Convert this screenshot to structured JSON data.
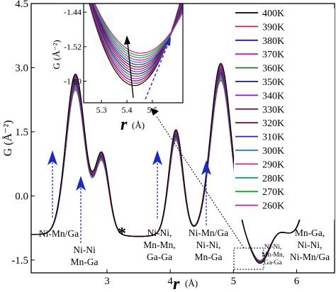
{
  "chart_data": {
    "type": "line",
    "main": {
      "xlabel": "r",
      "xunit": "(Å)",
      "ylabel": "G (Å⁻²)",
      "xlim": [
        1.8,
        6.6
      ],
      "ylim": [
        -1.8,
        4.5
      ],
      "xticks": [
        3,
        4,
        5,
        6
      ],
      "yticks": [
        -1.5,
        0.0,
        1.5,
        3.0,
        4.5
      ],
      "ytick_labels": [
        "-1.5",
        "0.0",
        "1.5",
        "3.0",
        "4.5"
      ]
    },
    "inset": {
      "xlabel": "r",
      "xunit": "(Å)",
      "ylabel": "G (Å⁻²)",
      "xlim": [
        5.23,
        5.62
      ],
      "ylim": [
        -1.65,
        -1.42
      ],
      "xticks": [
        5.3,
        5.4,
        5.5
      ],
      "xtick_labels": [
        "5.3",
        "5.4",
        "5.5"
      ],
      "yticks": [
        -1.6,
        -1.52,
        -1.44
      ],
      "ytick_labels": [
        "-1.60",
        "-1.52",
        "-1.44"
      ]
    },
    "series": [
      {
        "name": "400K",
        "color": "#000000"
      },
      {
        "name": "390K",
        "color": "#e8192c"
      },
      {
        "name": "380K",
        "color": "#1a1ab8"
      },
      {
        "name": "370K",
        "color": "#d418c8"
      },
      {
        "name": "360K",
        "color": "#1e7d1e"
      },
      {
        "name": "350K",
        "color": "#1c1c7a"
      },
      {
        "name": "340K",
        "color": "#8a18c8"
      },
      {
        "name": "330K",
        "color": "#7a1a50"
      },
      {
        "name": "320K",
        "color": "#6b1a1a"
      },
      {
        "name": "310K",
        "color": "#2a2aa8"
      },
      {
        "name": "300K",
        "color": "#1a7ab8"
      },
      {
        "name": "290K",
        "color": "#e8198c"
      },
      {
        "name": "280K",
        "color": "#1a9a6a"
      },
      {
        "name": "270K",
        "color": "#1aa82a"
      },
      {
        "name": "260K",
        "color": "#c81a9a"
      }
    ],
    "peaks": [
      {
        "r": 2.5,
        "g": 2.85,
        "w": 0.15
      },
      {
        "r": 2.92,
        "g": 0.95,
        "w": 0.11
      },
      {
        "r": 3.5,
        "g": -0.95,
        "w": 0.22
      },
      {
        "r": 4.09,
        "g": 1.55,
        "w": 0.11
      },
      {
        "r": 4.8,
        "g": 3.1,
        "w": 0.16
      },
      {
        "r": 5.42,
        "g": -1.58,
        "w": 0.14
      },
      {
        "r": 5.7,
        "g": -0.8,
        "w": 0.1
      },
      {
        "r": 6.38,
        "g": 3.35,
        "w": 0.15
      }
    ],
    "annotations": [
      {
        "id": "p1",
        "text": [
          "Ni-Mn/Ga"
        ],
        "small": false
      },
      {
        "id": "p2",
        "text": [
          "Ni-Ni",
          "Mn-Ga"
        ],
        "small": false
      },
      {
        "id": "p3",
        "text": [
          "*"
        ],
        "small": false
      },
      {
        "id": "p4",
        "text": [
          "Ni-Ni,",
          "Mn-Mn,",
          "Ga-Ga"
        ],
        "small": false
      },
      {
        "id": "p5",
        "text": [
          "Ni-Mn/Ga",
          "Ni-Ni,",
          "Mn-Ga"
        ],
        "small": false
      },
      {
        "id": "p6",
        "text": [
          "Ni-Ni,",
          "Mn-Mn,",
          "Ga-Ga"
        ],
        "small": true
      },
      {
        "id": "p7",
        "text": [
          "Mn-Ga,",
          "Ni-Ni,",
          "Ni-Mn/Ga"
        ],
        "small": false
      }
    ]
  }
}
